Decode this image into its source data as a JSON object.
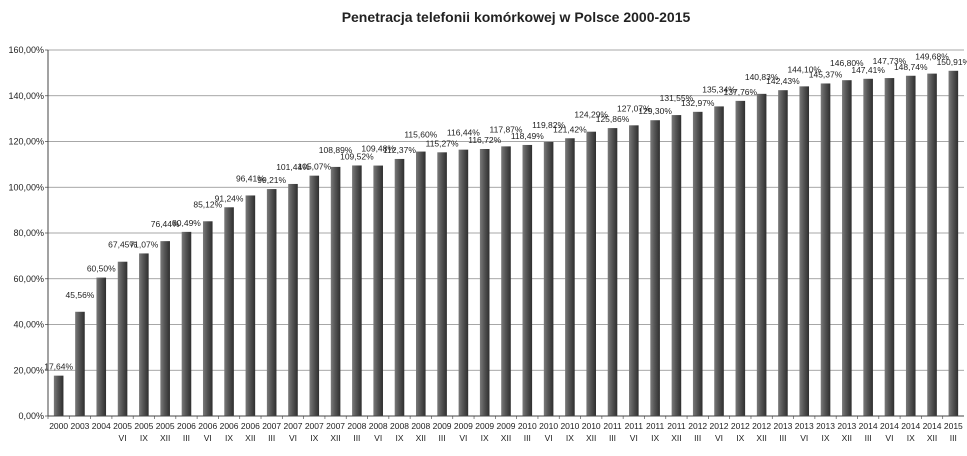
{
  "chart_data": {
    "type": "bar",
    "title": "Penetracja telefonii komórkowej w Polsce 2000-2015",
    "ylim": [
      0,
      160
    ],
    "ytick_labels": [
      "0,00%",
      "20,00%",
      "40,00%",
      "60,00%",
      "80,00%",
      "100,00%",
      "120,00%",
      "140,00%",
      "160,00%"
    ],
    "grid": true,
    "legend": "none",
    "bar_color": "#555555",
    "categories": [
      {
        "year": "2000",
        "period": ""
      },
      {
        "year": "2003",
        "period": ""
      },
      {
        "year": "2004",
        "period": ""
      },
      {
        "year": "2005",
        "period": "VI"
      },
      {
        "year": "2005",
        "period": "IX"
      },
      {
        "year": "2005",
        "period": "XII"
      },
      {
        "year": "2006",
        "period": "III"
      },
      {
        "year": "2006",
        "period": "VI"
      },
      {
        "year": "2006",
        "period": "IX"
      },
      {
        "year": "2006",
        "period": "XII"
      },
      {
        "year": "2007",
        "period": "III"
      },
      {
        "year": "2007",
        "period": "VI"
      },
      {
        "year": "2007",
        "period": "IX"
      },
      {
        "year": "2007",
        "period": "XII"
      },
      {
        "year": "2008",
        "period": "III"
      },
      {
        "year": "2008",
        "period": "VI"
      },
      {
        "year": "2008",
        "period": "IX"
      },
      {
        "year": "2008",
        "period": "XII"
      },
      {
        "year": "2009",
        "period": "III"
      },
      {
        "year": "2009",
        "period": "VI"
      },
      {
        "year": "2009",
        "period": "IX"
      },
      {
        "year": "2009",
        "period": "XII"
      },
      {
        "year": "2010",
        "period": "III"
      },
      {
        "year": "2010",
        "period": "VI"
      },
      {
        "year": "2010",
        "period": "IX"
      },
      {
        "year": "2010",
        "period": "XII"
      },
      {
        "year": "2011",
        "period": "III"
      },
      {
        "year": "2011",
        "period": "VI"
      },
      {
        "year": "2011",
        "period": "IX"
      },
      {
        "year": "2011",
        "period": "XII"
      },
      {
        "year": "2012",
        "period": "III"
      },
      {
        "year": "2012",
        "period": "VI"
      },
      {
        "year": "2012",
        "period": "IX"
      },
      {
        "year": "2012",
        "period": "XII"
      },
      {
        "year": "2013",
        "period": "III"
      },
      {
        "year": "2013",
        "period": "VI"
      },
      {
        "year": "2013",
        "period": "IX"
      },
      {
        "year": "2013",
        "period": "XII"
      },
      {
        "year": "2014",
        "period": "III"
      },
      {
        "year": "2014",
        "period": "VI"
      },
      {
        "year": "2014",
        "period": "IX"
      },
      {
        "year": "2014",
        "period": "XII"
      },
      {
        "year": "2015",
        "period": "III"
      }
    ],
    "values": [
      17.64,
      45.56,
      60.5,
      67.45,
      71.07,
      76.44,
      80.49,
      85.12,
      91.24,
      96.41,
      99.21,
      101.44,
      105.07,
      108.89,
      109.52,
      109.48,
      112.37,
      115.6,
      115.27,
      116.44,
      116.72,
      117.87,
      118.49,
      119.82,
      121.42,
      124.29,
      125.86,
      127.07,
      129.3,
      131.55,
      132.97,
      135.34,
      137.76,
      140.83,
      142.43,
      144.1,
      145.37,
      146.8,
      147.41,
      147.73,
      148.74,
      149.68,
      150.91
    ],
    "data_labels": [
      "17,64%",
      "45,56%",
      "60,50%",
      "67,45%",
      "71,07%",
      "76,44%",
      "80,49%",
      "85,12%",
      "91,24%",
      "96,41%",
      "99,21%",
      "101,44%",
      "105,07%",
      "108,89%",
      "109,52%",
      "109,48%",
      "112,37%",
      "115,60%",
      "115,27%",
      "116,44%",
      "116,72%",
      "117,87%",
      "118,49%",
      "119,82%",
      "121,42%",
      "124,29%",
      "125,86%",
      "127,07%",
      "129,30%",
      "131,55%",
      "132,97%",
      "135,34%",
      "137,76%",
      "140,83%",
      "142,43%",
      "144,10%",
      "145,37%",
      "146,80%",
      "147,41%",
      "147,73%",
      "148,74%",
      "149,68%",
      "150,91%"
    ]
  }
}
